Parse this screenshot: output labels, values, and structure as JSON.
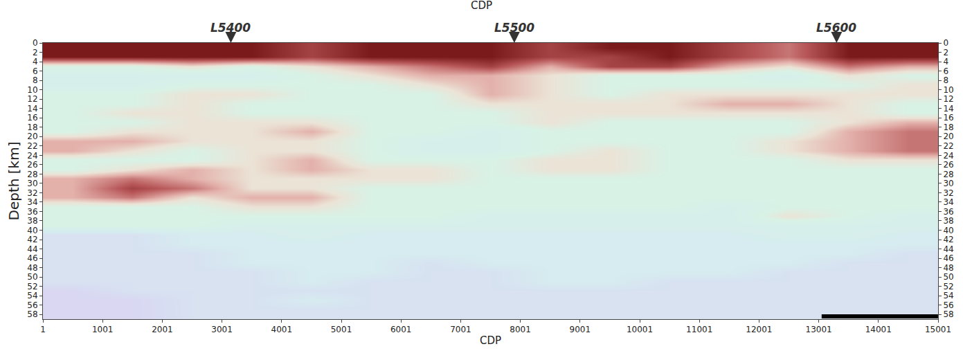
{
  "chart_data": {
    "type": "heatmap",
    "title": "CDP",
    "x_label": "CDP",
    "y_label": "Depth [km]",
    "xlim": [
      1,
      15001
    ],
    "ylim": [
      0,
      59
    ],
    "xticks": [
      1,
      1001,
      2001,
      3001,
      4001,
      5001,
      6001,
      7001,
      8001,
      9001,
      10001,
      11001,
      12001,
      13001,
      14001,
      15001
    ],
    "yticks": [
      0,
      2,
      4,
      6,
      8,
      10,
      12,
      14,
      16,
      18,
      20,
      22,
      24,
      26,
      28,
      30,
      32,
      34,
      36,
      38,
      40,
      42,
      44,
      46,
      48,
      50,
      52,
      54,
      56,
      58
    ],
    "x": [
      501,
      1501,
      2501,
      3501,
      4501,
      5501,
      6501,
      7501,
      8501,
      9501,
      10501,
      11501,
      12501,
      13501,
      14501
    ],
    "y": [
      1,
      3,
      5,
      7,
      9,
      11,
      13,
      15,
      17,
      19,
      21,
      23,
      25,
      27,
      29,
      31,
      33,
      35,
      37,
      39,
      41,
      43,
      45,
      47,
      49,
      51,
      53,
      55,
      57,
      59
    ],
    "cells": [
      [
        9,
        9,
        9,
        9,
        8,
        9,
        9,
        9,
        8,
        9,
        9,
        8,
        7,
        9,
        9
      ],
      [
        9,
        9,
        9,
        9,
        8,
        9,
        9,
        9,
        8,
        8,
        9,
        8,
        7,
        9,
        9
      ],
      [
        4,
        4,
        5,
        4,
        5,
        6,
        7,
        8,
        6,
        8,
        8,
        6,
        5,
        7,
        6
      ],
      [
        3,
        3,
        3,
        3,
        4,
        5,
        6,
        6,
        5,
        4,
        4,
        4,
        3,
        5,
        4
      ],
      [
        3,
        3,
        4,
        4,
        4,
        4,
        5,
        6,
        5,
        4,
        4,
        4,
        4,
        4,
        5
      ],
      [
        4,
        4,
        5,
        5,
        4,
        4,
        4,
        6,
        5,
        4,
        5,
        5,
        5,
        5,
        5
      ],
      [
        4,
        4,
        5,
        4,
        4,
        4,
        4,
        5,
        5,
        5,
        5,
        6,
        6,
        5,
        4
      ],
      [
        4,
        5,
        5,
        4,
        4,
        4,
        4,
        4,
        5,
        5,
        5,
        5,
        5,
        5,
        4
      ],
      [
        4,
        4,
        5,
        5,
        5,
        4,
        4,
        4,
        5,
        4,
        4,
        4,
        4,
        5,
        6
      ],
      [
        4,
        5,
        5,
        5,
        6,
        4,
        4,
        3,
        4,
        4,
        4,
        4,
        4,
        6,
        7
      ],
      [
        6,
        6,
        5,
        5,
        5,
        4,
        3,
        3,
        4,
        4,
        4,
        4,
        5,
        6,
        7
      ],
      [
        6,
        5,
        4,
        5,
        5,
        4,
        3,
        3,
        4,
        5,
        4,
        4,
        5,
        6,
        7
      ],
      [
        4,
        4,
        4,
        5,
        6,
        4,
        4,
        4,
        5,
        5,
        4,
        4,
        4,
        5,
        5
      ],
      [
        4,
        5,
        6,
        5,
        6,
        5,
        5,
        4,
        5,
        5,
        4,
        4,
        4,
        4,
        4
      ],
      [
        6,
        7,
        6,
        5,
        5,
        5,
        5,
        4,
        4,
        4,
        4,
        4,
        4,
        4,
        4
      ],
      [
        6,
        8,
        7,
        5,
        5,
        4,
        4,
        4,
        4,
        4,
        4,
        4,
        4,
        4,
        4
      ],
      [
        6,
        7,
        5,
        6,
        6,
        4,
        4,
        4,
        4,
        4,
        4,
        4,
        4,
        4,
        4
      ],
      [
        4,
        4,
        4,
        5,
        5,
        4,
        4,
        4,
        4,
        4,
        4,
        3,
        4,
        4,
        4
      ],
      [
        4,
        4,
        4,
        4,
        4,
        4,
        4,
        3,
        3,
        3,
        3,
        3,
        5,
        4,
        3
      ],
      [
        4,
        4,
        4,
        3,
        3,
        3,
        3,
        3,
        3,
        3,
        3,
        3,
        3,
        3,
        3
      ],
      [
        1,
        1,
        2,
        2,
        3,
        2,
        2,
        2,
        2,
        2,
        2,
        2,
        3,
        3,
        2
      ],
      [
        1,
        1,
        2,
        2,
        2,
        2,
        2,
        2,
        2,
        2,
        2,
        2,
        2,
        2,
        2
      ],
      [
        1,
        1,
        1,
        2,
        2,
        2,
        2,
        2,
        2,
        2,
        2,
        2,
        2,
        2,
        1
      ],
      [
        1,
        1,
        1,
        2,
        2,
        2,
        1,
        2,
        2,
        2,
        2,
        2,
        2,
        1,
        1
      ],
      [
        1,
        1,
        1,
        1,
        2,
        2,
        1,
        1,
        2,
        2,
        2,
        2,
        1,
        1,
        1
      ],
      [
        1,
        1,
        1,
        1,
        2,
        1,
        1,
        1,
        2,
        2,
        1,
        1,
        1,
        1,
        1
      ],
      [
        0,
        1,
        1,
        1,
        1,
        1,
        1,
        1,
        1,
        1,
        1,
        1,
        1,
        1,
        1
      ],
      [
        0,
        0,
        1,
        1,
        2,
        1,
        1,
        1,
        1,
        1,
        1,
        1,
        1,
        1,
        1
      ],
      [
        0,
        0,
        1,
        1,
        1,
        1,
        1,
        1,
        1,
        1,
        1,
        1,
        1,
        1,
        1
      ],
      [
        0,
        0,
        1,
        1,
        1,
        1,
        1,
        1,
        1,
        1,
        1,
        1,
        1,
        1,
        1
      ]
    ],
    "color_range": [
      0,
      10
    ],
    "annotations": [
      {
        "text": "L5400",
        "x": 3150
      },
      {
        "text": "L5500",
        "x": 7900
      },
      {
        "text": "L5600",
        "x": 13300
      }
    ],
    "scale_bar": {
      "x": [
        13050,
        15000
      ],
      "depth": 58.4
    },
    "grid": false
  }
}
